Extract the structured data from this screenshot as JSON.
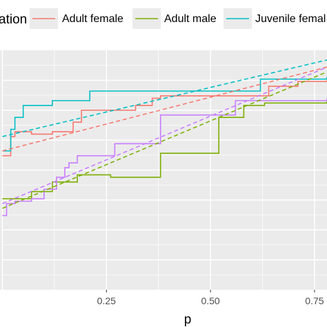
{
  "chart_data": {
    "type": "line",
    "legend": {
      "title": "ation",
      "placement": "top",
      "entries": [
        {
          "name": "Adult female",
          "color": "#F8766D"
        },
        {
          "name": "Adult male",
          "color": "#7CAE00"
        },
        {
          "name": "Juvenile femal",
          "color": "#00BFC4"
        }
      ]
    },
    "xlabel": "p",
    "ylabel": "",
    "x_ticks": [
      {
        "value": 0.25,
        "label": "0.25"
      },
      {
        "value": 0.5,
        "label": "0.50"
      },
      {
        "value": 0.75,
        "label": "0.75"
      }
    ],
    "xlim": [
      0.0,
      0.78
    ],
    "ylim": [
      0.0,
      1.0
    ],
    "grid": true,
    "series": [
      {
        "name": "Adult female",
        "color": "#F8766D",
        "style": "step",
        "points": [
          [
            0.0,
            0.56
          ],
          [
            0.02,
            0.64
          ],
          [
            0.03,
            0.66
          ],
          [
            0.07,
            0.65
          ],
          [
            0.12,
            0.66
          ],
          [
            0.17,
            0.7
          ],
          [
            0.19,
            0.75
          ],
          [
            0.32,
            0.77
          ],
          [
            0.36,
            0.8
          ],
          [
            0.38,
            0.81
          ],
          [
            0.64,
            0.85
          ],
          [
            0.71,
            0.87
          ],
          [
            0.78,
            0.88
          ]
        ]
      },
      {
        "name": "Adult male",
        "color": "#7CAE00",
        "style": "step",
        "points": [
          [
            0.0,
            0.38
          ],
          [
            0.07,
            0.41
          ],
          [
            0.12,
            0.45
          ],
          [
            0.18,
            0.48
          ],
          [
            0.26,
            0.47
          ],
          [
            0.38,
            0.57
          ],
          [
            0.52,
            0.72
          ],
          [
            0.58,
            0.77
          ],
          [
            0.63,
            0.78
          ],
          [
            0.78,
            0.79
          ]
        ]
      },
      {
        "name": "Juvenile femal",
        "color": "#00BFC4",
        "style": "step",
        "points": [
          [
            0.0,
            0.58
          ],
          [
            0.02,
            0.67
          ],
          [
            0.03,
            0.72
          ],
          [
            0.05,
            0.77
          ],
          [
            0.12,
            0.79
          ],
          [
            0.21,
            0.83
          ],
          [
            0.62,
            0.88
          ],
          [
            0.78,
            0.89
          ]
        ]
      },
      {
        "name": "",
        "color": "#C77CFF",
        "style": "step",
        "points": [
          [
            0.0,
            0.31
          ],
          [
            0.01,
            0.36
          ],
          [
            0.03,
            0.37
          ],
          [
            0.07,
            0.38
          ],
          [
            0.1,
            0.42
          ],
          [
            0.13,
            0.47
          ],
          [
            0.15,
            0.51
          ],
          [
            0.16,
            0.53
          ],
          [
            0.18,
            0.56
          ],
          [
            0.27,
            0.61
          ],
          [
            0.38,
            0.73
          ],
          [
            0.56,
            0.79
          ],
          [
            0.78,
            0.8
          ]
        ]
      },
      {
        "name": "Adult female",
        "color": "#F8766D",
        "style": "dashed",
        "points": [
          [
            0.0,
            0.58
          ],
          [
            0.78,
            0.93
          ]
        ]
      },
      {
        "name": "Adult male",
        "color": "#7CAE00",
        "style": "dashed",
        "points": [
          [
            0.0,
            0.34
          ],
          [
            0.78,
            0.91
          ]
        ]
      },
      {
        "name": "Juvenile femal",
        "color": "#00BFC4",
        "style": "dashed",
        "points": [
          [
            0.0,
            0.64
          ],
          [
            0.78,
            0.96
          ]
        ]
      },
      {
        "name": "",
        "color": "#C77CFF",
        "style": "dashed",
        "points": [
          [
            0.0,
            0.36
          ],
          [
            0.78,
            0.93
          ]
        ]
      }
    ]
  }
}
